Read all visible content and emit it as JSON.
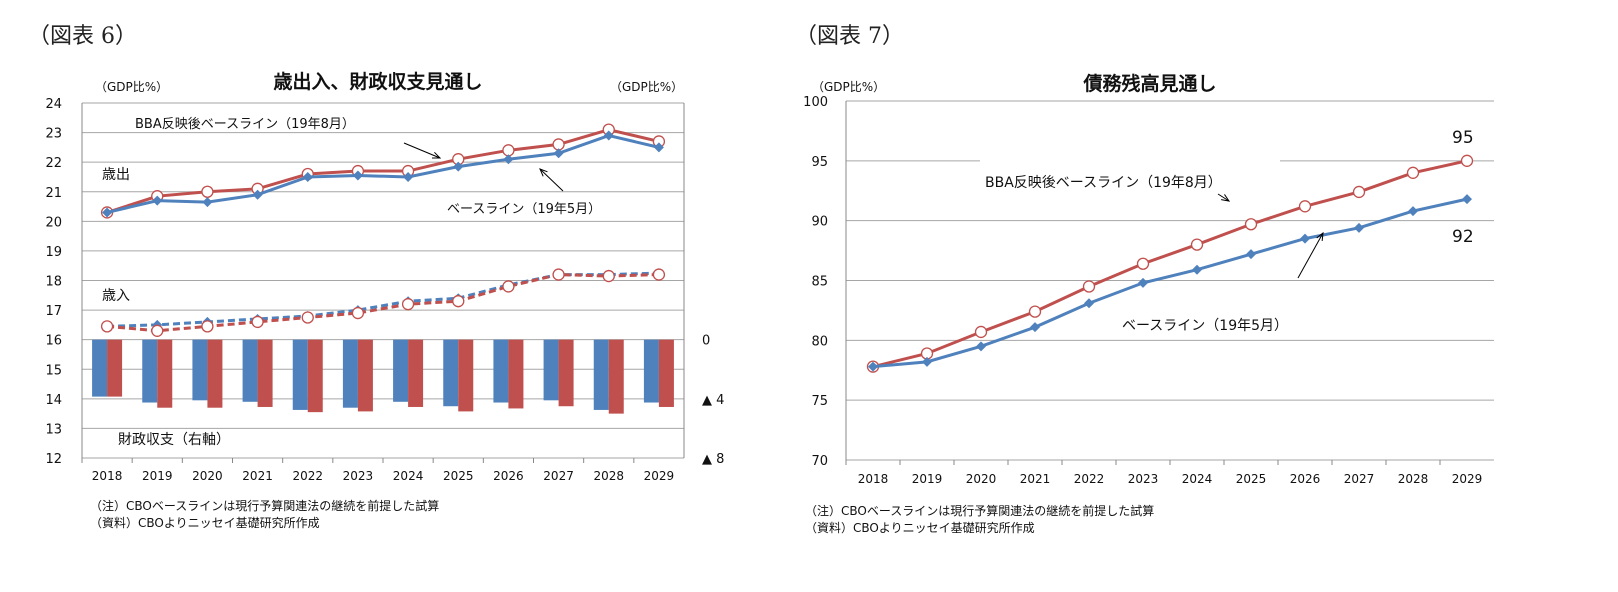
{
  "figures": {
    "left_label": "（図表 6）",
    "right_label": "（図表 7）"
  },
  "notes": {
    "left": [
      "（注）CBOベースラインは現行予算関連法の継続を前提した試算",
      "（資料）CBOよりニッセイ基礎研究所作成"
    ],
    "right": [
      "（注）CBOベースラインは現行予算関連法の継続を前提した試算",
      "（資料）CBOよりニッセイ基礎研究所作成"
    ]
  },
  "colors": {
    "baseline": "#4f81bd",
    "bba": "#c0504d",
    "grid": "#a6a6a6"
  },
  "chart_data": [
    {
      "type": "line+bar",
      "title": "歳出入、財政収支見通し",
      "ylabel_left": "（GDP比%）",
      "ylabel_right": "（GDP比%）",
      "ylim": [
        12,
        24
      ],
      "yticks": [
        12,
        13,
        14,
        15,
        16,
        17,
        18,
        19,
        20,
        21,
        22,
        23,
        24
      ],
      "y2ticks": [
        "0",
        "▲ 4",
        "▲ 8"
      ],
      "y2lim": [
        -8,
        0
      ],
      "categories": [
        "2018",
        "2019",
        "2020",
        "2021",
        "2022",
        "2023",
        "2024",
        "2025",
        "2026",
        "2027",
        "2028",
        "2029"
      ],
      "grid": true,
      "annotations": {
        "outlays": "歳出",
        "revenues": "歳入",
        "balance": "財政収支（右軸）",
        "bba": "BBA反映後ベースライン（19年8月）",
        "baseline": "ベースライン（19年5月）"
      },
      "series": [
        {
          "name": "BBA反映後ベースライン（19年8月）",
          "group": "歳出",
          "style": "solid-circle",
          "color": "#c0504d",
          "values": [
            20.3,
            20.85,
            21.0,
            21.1,
            21.6,
            21.7,
            21.7,
            22.1,
            22.4,
            22.6,
            23.1,
            22.7
          ]
        },
        {
          "name": "ベースライン（19年5月）",
          "group": "歳出",
          "style": "solid-diamond",
          "color": "#4f81bd",
          "values": [
            20.3,
            20.7,
            20.65,
            20.9,
            21.5,
            21.55,
            21.5,
            21.85,
            22.1,
            22.3,
            22.9,
            22.5
          ]
        },
        {
          "group": "歳入",
          "style": "dashed-diamond",
          "color": "#4f81bd",
          "values": [
            16.45,
            16.5,
            16.6,
            16.7,
            16.8,
            17.0,
            17.3,
            17.4,
            17.85,
            18.2,
            18.2,
            18.25
          ]
        },
        {
          "group": "歳入",
          "style": "dashed-circle",
          "color": "#c0504d",
          "values": [
            16.45,
            16.3,
            16.45,
            16.6,
            16.75,
            16.9,
            17.2,
            17.3,
            17.8,
            18.2,
            18.15,
            18.2
          ]
        },
        {
          "group": "財政収支",
          "style": "bar",
          "axis": "right",
          "color": "#4f81bd",
          "values": [
            -3.85,
            -4.25,
            -4.1,
            -4.2,
            -4.75,
            -4.6,
            -4.2,
            -4.5,
            -4.25,
            -4.1,
            -4.75,
            -4.25
          ]
        },
        {
          "group": "財政収支",
          "style": "bar",
          "axis": "right",
          "color": "#c0504d",
          "values": [
            -3.85,
            -4.6,
            -4.6,
            -4.55,
            -4.9,
            -4.85,
            -4.55,
            -4.85,
            -4.65,
            -4.5,
            -5.0,
            -4.55
          ]
        }
      ]
    },
    {
      "type": "line",
      "title": "債務残高見通し",
      "ylabel": "（GDP比%）",
      "ylim": [
        70,
        100
      ],
      "yticks": [
        70,
        75,
        80,
        85,
        90,
        95,
        100
      ],
      "categories": [
        "2018",
        "2019",
        "2020",
        "2021",
        "2022",
        "2023",
        "2024",
        "2025",
        "2026",
        "2027",
        "2028",
        "2029"
      ],
      "grid": true,
      "data_labels": {
        "bba_end": "95",
        "baseline_end": "92"
      },
      "series": [
        {
          "name": "BBA反映後ベースライン（19年8月）",
          "style": "solid-circle",
          "color": "#c0504d",
          "values": [
            77.8,
            78.9,
            80.7,
            82.4,
            84.5,
            86.4,
            88.0,
            89.7,
            91.2,
            92.4,
            94.0,
            95.0
          ]
        },
        {
          "name": "ベースライン（19年5月）",
          "style": "solid-diamond",
          "color": "#4f81bd",
          "values": [
            77.8,
            78.2,
            79.5,
            81.1,
            83.1,
            84.8,
            85.9,
            87.2,
            88.5,
            89.4,
            90.8,
            91.8
          ]
        }
      ]
    }
  ]
}
